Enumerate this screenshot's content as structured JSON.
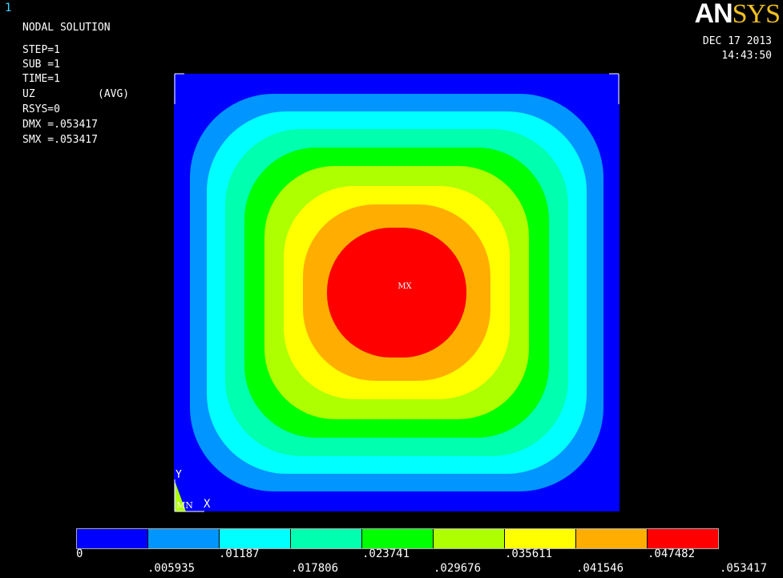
{
  "window": {
    "number": "1"
  },
  "info": {
    "title": "NODAL SOLUTION",
    "step": "STEP=1",
    "sub": "SUB =1",
    "time": "TIME=1",
    "quantity": "UZ",
    "avg": "(AVG)",
    "rsys": "RSYS=0",
    "dmx": "DMX =.053417",
    "smx": "SMX =.053417"
  },
  "logo": {
    "part1": "AN",
    "part2": "SYS"
  },
  "timestamp": {
    "date": "DEC 17 2013",
    "time": "14:43:50"
  },
  "plot": {
    "max_marker": "MX",
    "min_marker": "MN",
    "axis_x": "X",
    "axis_y": "Y",
    "band_colors": [
      "#0000ff",
      "#0095ff",
      "#00ffff",
      "#00ffae",
      "#00ff00",
      "#aeff00",
      "#ffff00",
      "#ffae00",
      "#ff0000"
    ]
  },
  "legend": {
    "colors": [
      "#0000ff",
      "#0095ff",
      "#00ffff",
      "#00ffae",
      "#00ff00",
      "#aeff00",
      "#ffff00",
      "#ffae00",
      "#ff0000"
    ],
    "labels_top": [
      "0",
      ".01187",
      ".023741",
      ".035611",
      ".047482"
    ],
    "labels_bottom": [
      ".005935",
      ".017806",
      ".029676",
      ".041546",
      ".053417"
    ]
  }
}
